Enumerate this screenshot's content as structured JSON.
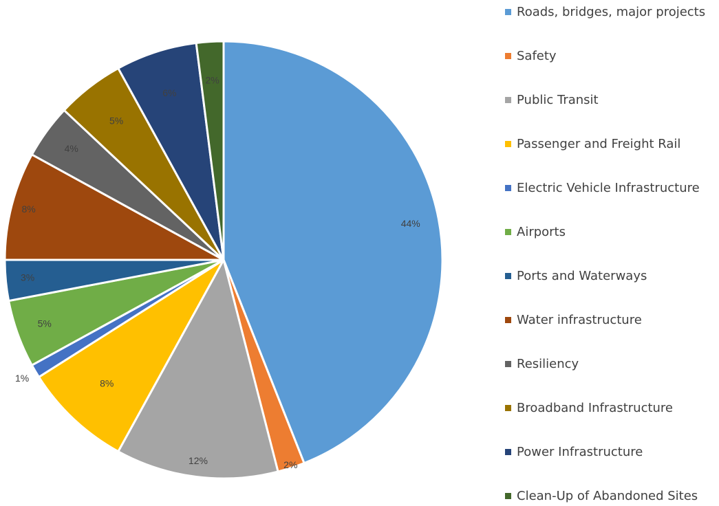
{
  "chart_data": {
    "type": "pie",
    "title": "",
    "legend_position": "right",
    "slices": [
      {
        "name": "Roads, bridges, major projects",
        "value": 44,
        "label": "44%",
        "color": "#5B9BD5"
      },
      {
        "name": "Safety",
        "value": 2,
        "label": "2%",
        "color": "#ED7D31"
      },
      {
        "name": "Public Transit",
        "value": 12,
        "label": "12%",
        "color": "#A5A5A5"
      },
      {
        "name": "Passenger and Freight Rail",
        "value": 8,
        "label": "8%",
        "color": "#FFC000"
      },
      {
        "name": "Electric Vehicle Infrastructure",
        "value": 1,
        "label": "1%",
        "color": "#4472C4"
      },
      {
        "name": "Airports",
        "value": 5,
        "label": "5%",
        "color": "#70AD47"
      },
      {
        "name": "Ports and Waterways",
        "value": 3,
        "label": "3%",
        "color": "#255E91"
      },
      {
        "name": "Water infrastructure",
        "value": 8,
        "label": "8%",
        "color": "#9E480E"
      },
      {
        "name": "Resiliency",
        "value": 4,
        "label": "4%",
        "color": "#636363"
      },
      {
        "name": "Broadband Infrastructure",
        "value": 5,
        "label": "5%",
        "color": "#997300"
      },
      {
        "name": "Power Infrastructure",
        "value": 6,
        "label": "6%",
        "color": "#264478"
      },
      {
        "name": "Clean-Up of Abandoned Sites",
        "value": 2,
        "label": "2%",
        "color": "#43682B"
      }
    ]
  }
}
